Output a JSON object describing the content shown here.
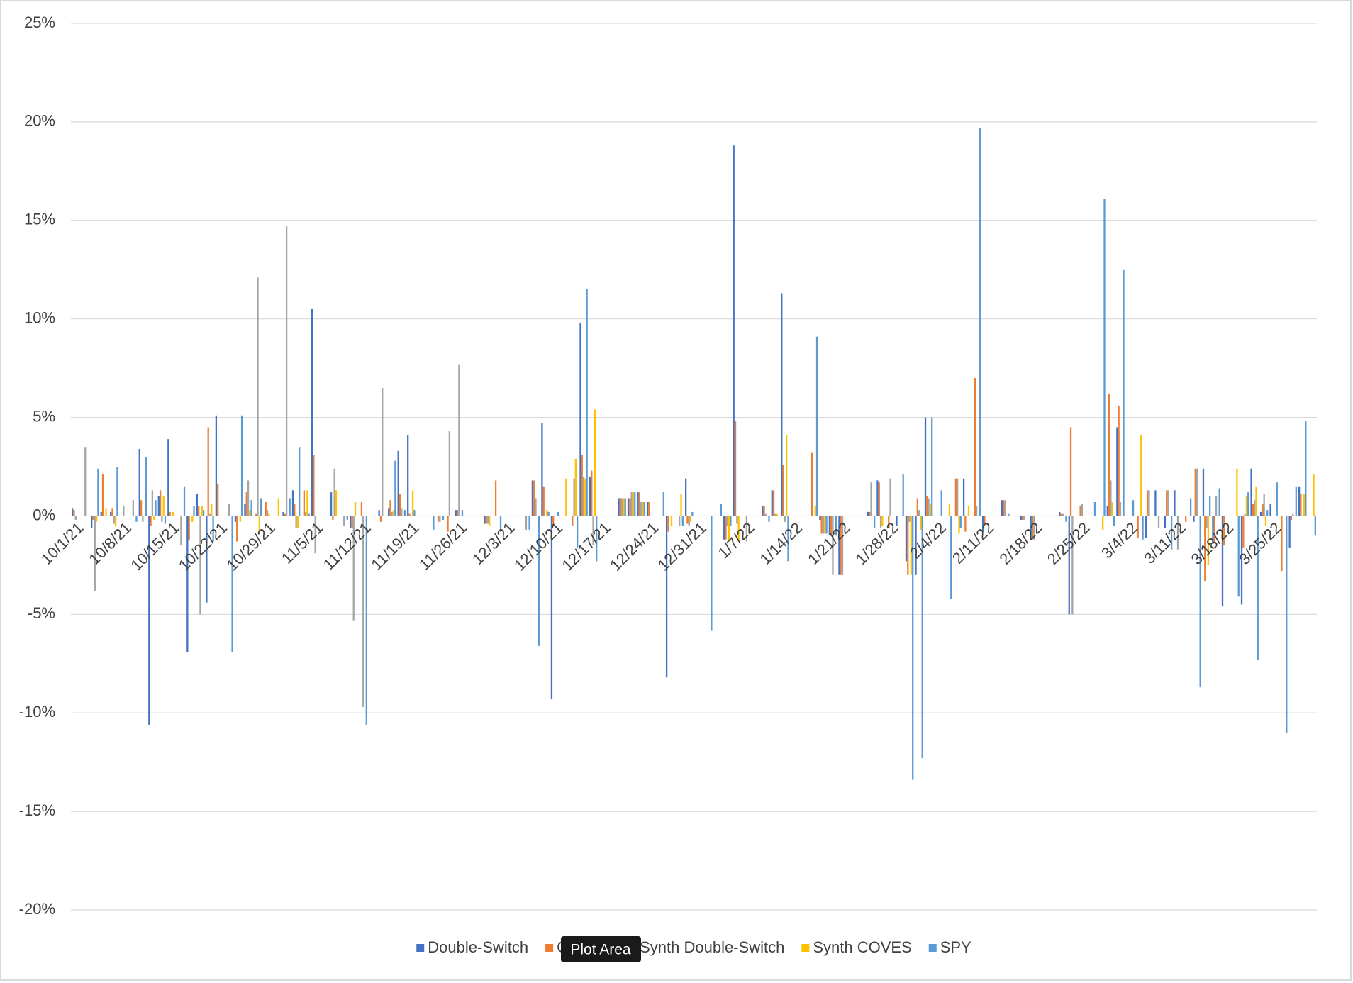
{
  "chart_data": {
    "type": "bar",
    "categories": [
      "10/1/21",
      null,
      null,
      null,
      null,
      "10/8/21",
      null,
      null,
      null,
      null,
      "10/15/21",
      null,
      null,
      null,
      null,
      "10/22/21",
      null,
      null,
      null,
      null,
      "10/29/21",
      null,
      null,
      null,
      null,
      "11/5/21",
      null,
      null,
      null,
      null,
      "11/12/21",
      null,
      null,
      null,
      null,
      "11/19/21",
      null,
      null,
      null,
      null,
      "11/26/21",
      null,
      null,
      null,
      null,
      "12/3/21",
      null,
      null,
      null,
      null,
      "12/10/21",
      null,
      null,
      null,
      null,
      "12/17/21",
      null,
      null,
      null,
      null,
      "12/24/21",
      null,
      null,
      null,
      null,
      "12/31/21",
      null,
      null,
      null,
      null,
      "1/7/22",
      null,
      null,
      null,
      null,
      "1/14/22",
      null,
      null,
      null,
      null,
      "1/21/22",
      null,
      null,
      null,
      null,
      "1/28/22",
      null,
      null,
      null,
      null,
      "2/4/22",
      null,
      null,
      null,
      null,
      "2/11/22",
      null,
      null,
      null,
      null,
      "2/18/22",
      null,
      null,
      null,
      null,
      "2/25/22",
      null,
      null,
      null,
      null,
      "3/4/22",
      null,
      null,
      null,
      null,
      "3/11/22",
      null,
      null,
      null,
      null,
      "3/18/22",
      null,
      null,
      null,
      null,
      "3/25/22",
      null,
      null,
      null,
      null
    ],
    "series": [
      {
        "name": "Double-Switch",
        "color": "#4472c4",
        "values": [
          0.4,
          0,
          -0.6,
          0.2,
          0.2,
          0,
          0,
          3.4,
          -10.6,
          1.0,
          3.9,
          0,
          -6.9,
          1.1,
          -4.4,
          5.1,
          0,
          -0.3,
          0.6,
          0,
          0,
          0,
          0.2,
          1.3,
          0,
          10.5,
          0,
          1.2,
          0,
          -0.6,
          0,
          0,
          0.3,
          0.4,
          3.3,
          4.1,
          0,
          0,
          0,
          0,
          0.3,
          0,
          0,
          -0.4,
          0,
          0,
          0,
          0,
          1.8,
          4.7,
          -9.3,
          0,
          0,
          9.8,
          2.0,
          0,
          0,
          0.9,
          0.9,
          1.2,
          0.7,
          0,
          -8.2,
          0,
          1.9,
          0,
          0,
          0,
          -1.2,
          18.8,
          0,
          0,
          0.5,
          1.3,
          11.3,
          0,
          0,
          0,
          -0.2,
          -1.0,
          -3.0,
          0,
          0,
          0.2,
          1.8,
          0,
          -0.5,
          -2.3,
          -3.0,
          5.0,
          0,
          0,
          0,
          1.9,
          0,
          -0.8,
          0,
          0.8,
          0,
          -0.2,
          -1.2,
          0,
          0,
          0.2,
          -5.0,
          0,
          0,
          0,
          0.5,
          4.5,
          0,
          0,
          -1.1,
          1.3,
          -0.6,
          1.3,
          0,
          -0.3,
          2.4,
          -1.4,
          -4.6,
          0,
          -4.5,
          2.4,
          0.2,
          0.6,
          0,
          -1.6,
          1.5,
          0
        ]
      },
      {
        "name": "COVES",
        "color": "#ed7d31",
        "values": [
          0.3,
          0,
          -0.2,
          2.1,
          0.4,
          0,
          0,
          0.8,
          -0.5,
          1.3,
          0.2,
          0,
          -1.2,
          0.5,
          4.5,
          1.6,
          0,
          -1.3,
          1.2,
          0.1,
          0.7,
          0,
          0.1,
          0.6,
          1.3,
          3.1,
          0,
          -0.2,
          0,
          -0.6,
          0.7,
          0,
          -0.3,
          0.8,
          1.1,
          0.1,
          0,
          0,
          -0.3,
          -0.8,
          0.3,
          0,
          0,
          -0.4,
          1.8,
          0,
          0,
          0,
          1.8,
          1.5,
          -0.5,
          0,
          -0.5,
          3.1,
          2.3,
          0,
          0,
          0.9,
          0.9,
          1.2,
          0.7,
          0,
          -0.8,
          0,
          -0.4,
          0,
          0,
          0,
          -1.2,
          4.8,
          0,
          0,
          0.5,
          1.3,
          2.6,
          0,
          0,
          3.2,
          -0.9,
          -1.0,
          -3.0,
          0,
          0,
          0.2,
          1.7,
          -0.6,
          0,
          -3.0,
          0.9,
          1.0,
          0,
          0,
          1.9,
          -0.8,
          7.0,
          -0.5,
          0,
          0.8,
          0,
          -0.2,
          -1.2,
          0,
          0,
          0.1,
          4.5,
          0.5,
          0,
          0,
          6.2,
          5.6,
          0,
          -1.1,
          1.3,
          0,
          1.3,
          0,
          -0.3,
          2.4,
          -3.3,
          -1.4,
          -1.5,
          0,
          -1.6,
          0.6,
          0.6,
          0,
          -2.8,
          -0.2,
          1.1,
          0
        ]
      },
      {
        "name": "Synth Double-Switch",
        "color": "#a5a5a5",
        "values": [
          -0.2,
          3.5,
          -3.8,
          0,
          -0.4,
          0.5,
          0.8,
          -0.3,
          1.3,
          -0.3,
          0,
          -1.5,
          0,
          -5.0,
          0.1,
          0,
          0.6,
          0,
          1.8,
          12.1,
          0.3,
          0,
          14.7,
          -0.6,
          0.2,
          -1.9,
          0,
          2.4,
          -0.5,
          -5.3,
          -9.7,
          0,
          6.5,
          0.2,
          0.4,
          0,
          0,
          0,
          -0.3,
          4.3,
          7.7,
          0,
          0,
          -0.4,
          0,
          0,
          0,
          -0.7,
          0.9,
          0,
          0,
          0,
          1.9,
          2.0,
          -1.5,
          0,
          0,
          0.9,
          1.2,
          0.7,
          0,
          0,
          0,
          -0.5,
          -0.5,
          0,
          0,
          0,
          -0.5,
          -0.4,
          -1.3,
          0,
          0.1,
          0.1,
          -0.3,
          0,
          0,
          0,
          -0.9,
          -3.0,
          -3.0,
          0,
          0,
          1.7,
          -0.6,
          1.9,
          0,
          -0.3,
          0.3,
          0.9,
          0,
          0,
          1.9,
          0,
          0.5,
          0,
          0,
          0.8,
          0,
          -0.2,
          -1.2,
          0,
          0,
          0.1,
          -5.0,
          0.6,
          0,
          0,
          1.8,
          0.7,
          0,
          0,
          1.3,
          -0.6,
          1.3,
          -1.7,
          0,
          2.4,
          -0.6,
          1.0,
          0,
          0,
          0.1,
          0.8,
          1.1,
          0,
          0,
          0.1,
          0,
          0
        ]
      },
      {
        "name": "Synth COVES",
        "color": "#ffc000",
        "values": [
          0,
          0,
          -0.3,
          0.4,
          -0.5,
          0,
          0,
          0,
          -0.2,
          1.0,
          0.2,
          0,
          -0.3,
          0.5,
          0.6,
          0,
          0,
          -0.3,
          0.3,
          -0.9,
          0.1,
          0.9,
          0,
          -0.6,
          1.3,
          0,
          0,
          1.3,
          0,
          0.7,
          0,
          0,
          0,
          0.3,
          0,
          1.3,
          0,
          0,
          0,
          0,
          0,
          0,
          0,
          -0.5,
          0,
          0,
          0,
          0,
          0,
          0.3,
          0,
          1.9,
          2.9,
          1.9,
          5.4,
          0,
          0,
          0.9,
          1.2,
          0.7,
          0,
          0,
          -0.5,
          1.1,
          -0.3,
          0,
          0,
          0,
          -1.3,
          -1.3,
          0,
          0,
          0,
          0.1,
          4.1,
          0,
          0,
          0.5,
          -0.9,
          0,
          0,
          0,
          0,
          0,
          -0.5,
          0,
          0,
          -3.0,
          -0.7,
          0.6,
          0,
          0.6,
          -0.9,
          0.5,
          0,
          0,
          0,
          0,
          0,
          0,
          0,
          0,
          0,
          0,
          0,
          0,
          0,
          -0.7,
          0.7,
          0,
          0,
          4.1,
          0,
          0,
          0,
          0,
          0,
          0,
          -2.5,
          0,
          0,
          2.4,
          1.0,
          1.5,
          -0.5,
          0,
          0,
          0,
          1.1,
          2.1
        ]
      },
      {
        "name": "SPY",
        "color": "#5b9bd5",
        "values": [
          0,
          0,
          2.4,
          0,
          2.5,
          0,
          -0.3,
          3.0,
          0.8,
          -0.4,
          0,
          1.5,
          0.5,
          0.3,
          -1.3,
          0,
          -6.9,
          5.1,
          0.8,
          0.9,
          0,
          0,
          0.9,
          3.5,
          0.1,
          0,
          0,
          0,
          -0.2,
          0,
          -10.6,
          0,
          0,
          2.8,
          0.3,
          0.3,
          0,
          -0.7,
          -0.2,
          0,
          0.3,
          0,
          0,
          0,
          -0.8,
          0,
          0,
          -0.7,
          -6.6,
          0.2,
          0.2,
          0,
          -1.6,
          11.5,
          -2.3,
          0,
          0,
          0.9,
          1.2,
          0.7,
          0,
          1.2,
          0,
          -0.5,
          0.2,
          0,
          -5.8,
          0.6,
          -0.5,
          0,
          0,
          0,
          -0.3,
          0,
          -2.3,
          0,
          0,
          9.1,
          -0.9,
          -1.0,
          0,
          0,
          0,
          -0.6,
          0,
          0,
          2.1,
          -13.4,
          -12.3,
          5.0,
          1.3,
          -4.2,
          -0.6,
          0,
          19.7,
          0,
          0,
          0.1,
          0,
          0,
          0,
          0,
          0,
          -0.3,
          0,
          0,
          0.7,
          16.1,
          -0.5,
          12.5,
          0.8,
          -1.2,
          0,
          0,
          -1.7,
          0,
          0.9,
          -8.7,
          1.0,
          1.4,
          0,
          -4.1,
          1.2,
          -7.3,
          0.3,
          1.7,
          -11.0,
          1.5,
          4.8,
          -1.0
        ]
      }
    ],
    "ylim": [
      -20,
      25
    ],
    "yticks": [
      {
        "value": -20,
        "label": "-20%"
      },
      {
        "value": -15,
        "label": "-15%"
      },
      {
        "value": -10,
        "label": "-10%"
      },
      {
        "value": -5,
        "label": "-5%"
      },
      {
        "value": 0,
        "label": "0%"
      },
      {
        "value": 5,
        "label": "5%"
      },
      {
        "value": 10,
        "label": "10%"
      },
      {
        "value": 15,
        "label": "15%"
      },
      {
        "value": 20,
        "label": "20%"
      },
      {
        "value": 25,
        "label": "25%"
      }
    ],
    "grid": true,
    "legend": "bottom"
  },
  "tooltip": "Plot Area"
}
